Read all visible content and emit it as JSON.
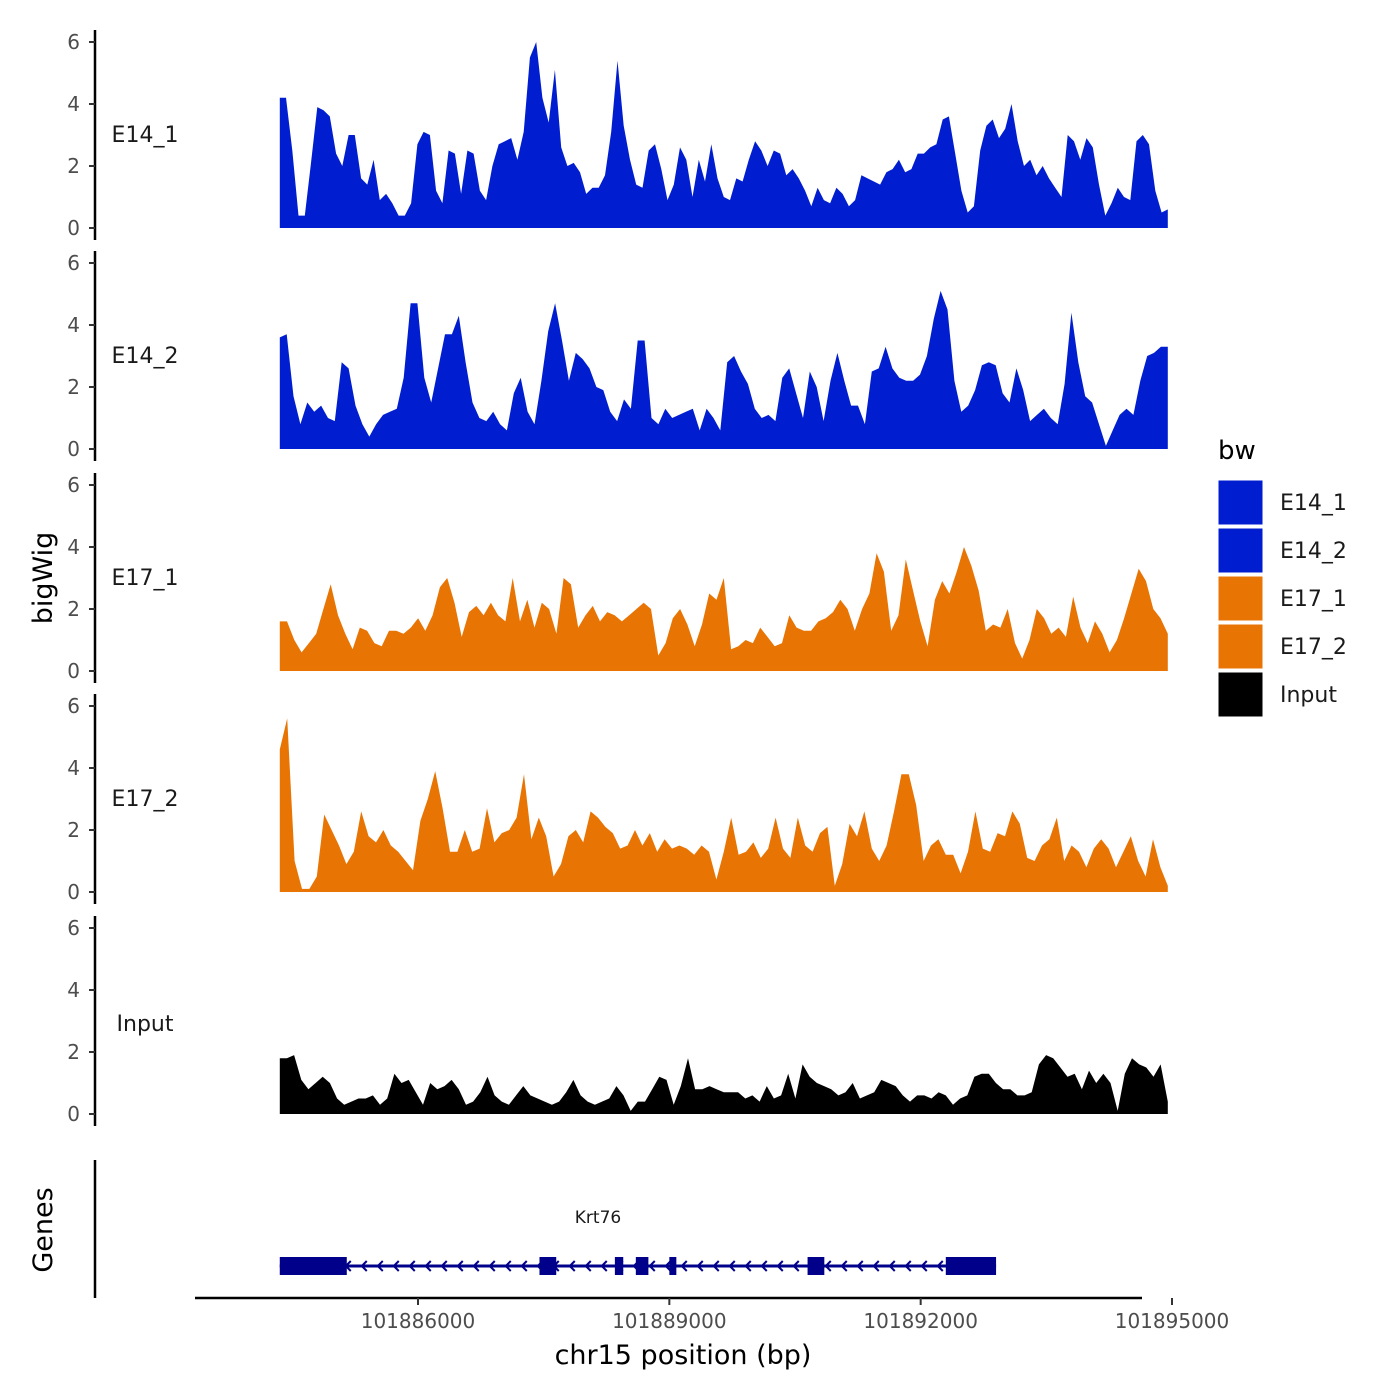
{
  "chart_data": {
    "type": "area",
    "ylabel": "bigWig",
    "xlabel": "chr15 position (bp)",
    "ylim": [
      0,
      6
    ],
    "yticks": [
      0,
      2,
      4,
      6
    ],
    "xlim": [
      101883500,
      101895300
    ],
    "xticks": [
      101886000,
      101889000,
      101892000,
      101895000
    ],
    "xtick_labels": [
      "101886000",
      "101889000",
      "101892000",
      "101895000"
    ],
    "data_start": 101884350,
    "data_end": 101894950,
    "legend": {
      "title": "bw",
      "entries": [
        {
          "label": "E14_1",
          "color": "#001ecf"
        },
        {
          "label": "E14_2",
          "color": "#001ecf"
        },
        {
          "label": "E17_1",
          "color": "#e87404"
        },
        {
          "label": "E17_2",
          "color": "#e87404"
        },
        {
          "label": "Input",
          "color": "#000000"
        }
      ]
    },
    "series": [
      {
        "name": "E14_1",
        "color": "#001ecf",
        "values": [
          4.2,
          4.2,
          2.5,
          0.4,
          0.4,
          2.1,
          3.9,
          3.8,
          3.6,
          2.4,
          2.0,
          3.0,
          3.0,
          1.6,
          1.4,
          2.2,
          0.9,
          1.1,
          0.8,
          0.4,
          0.4,
          0.8,
          2.7,
          3.1,
          3.0,
          1.2,
          0.8,
          2.5,
          2.4,
          1.1,
          2.5,
          2.4,
          1.2,
          0.9,
          2.0,
          2.7,
          2.8,
          2.9,
          2.2,
          3.1,
          5.5,
          6.0,
          4.2,
          3.4,
          5.1,
          2.6,
          2.0,
          2.1,
          1.8,
          1.1,
          1.3,
          1.3,
          1.7,
          3.1,
          5.4,
          3.3,
          2.2,
          1.4,
          1.3,
          2.5,
          2.7,
          1.9,
          0.9,
          1.4,
          2.6,
          2.2,
          1.0,
          2.2,
          1.5,
          2.7,
          1.6,
          1.0,
          0.9,
          1.6,
          1.5,
          2.2,
          2.8,
          2.5,
          2.0,
          2.5,
          2.4,
          1.7,
          1.9,
          1.6,
          1.2,
          0.7,
          1.3,
          0.9,
          0.8,
          1.3,
          1.1,
          0.7,
          0.9,
          1.7,
          1.6,
          1.5,
          1.4,
          1.8,
          1.9,
          2.2,
          1.8,
          1.9,
          2.4,
          2.4,
          2.6,
          2.7,
          3.5,
          3.6,
          2.4,
          1.2,
          0.5,
          0.7,
          2.5,
          3.3,
          3.5,
          2.9,
          3.2,
          4.0,
          2.8,
          2.0,
          2.2,
          1.7,
          2.0,
          1.6,
          1.3,
          1.0,
          3.0,
          2.8,
          2.2,
          2.9,
          2.6,
          1.4,
          0.4,
          0.8,
          1.3,
          1.0,
          0.9,
          2.8,
          3.0,
          2.7,
          1.2,
          0.5,
          0.6
        ]
      },
      {
        "name": "E14_2",
        "color": "#001ecf",
        "values": [
          3.6,
          3.7,
          1.7,
          0.8,
          1.5,
          1.2,
          1.4,
          1.0,
          0.9,
          2.8,
          2.6,
          1.4,
          0.8,
          0.4,
          0.8,
          1.1,
          1.2,
          1.3,
          2.3,
          4.7,
          4.7,
          2.3,
          1.5,
          2.6,
          3.7,
          3.7,
          4.3,
          2.8,
          1.5,
          1.0,
          0.9,
          1.2,
          0.8,
          0.6,
          1.8,
          2.3,
          1.2,
          0.8,
          2.2,
          3.8,
          4.7,
          3.5,
          2.2,
          3.1,
          2.9,
          2.6,
          2.0,
          1.9,
          1.2,
          0.9,
          1.6,
          1.3,
          3.5,
          3.5,
          1.0,
          0.8,
          1.3,
          1.0,
          1.1,
          1.2,
          1.3,
          0.6,
          1.3,
          1.0,
          0.6,
          2.8,
          3.0,
          2.5,
          2.1,
          1.3,
          1.0,
          1.1,
          0.9,
          2.3,
          2.6,
          1.8,
          1.0,
          2.5,
          2.0,
          0.9,
          2.2,
          3.1,
          2.2,
          1.4,
          1.4,
          0.8,
          2.5,
          2.6,
          3.3,
          2.6,
          2.3,
          2.2,
          2.2,
          2.4,
          3.0,
          4.2,
          5.1,
          4.5,
          2.2,
          1.2,
          1.4,
          1.9,
          2.7,
          2.8,
          2.7,
          1.8,
          1.5,
          2.6,
          1.9,
          0.9,
          1.1,
          1.3,
          1.0,
          0.8,
          2.1,
          4.4,
          2.8,
          1.7,
          1.5,
          0.8,
          0.1,
          0.6,
          1.1,
          1.3,
          1.1,
          2.2,
          3.0,
          3.1,
          3.3,
          3.3
        ]
      },
      {
        "name": "E17_1",
        "color": "#e87404",
        "values": [
          1.6,
          1.6,
          1.0,
          0.6,
          0.9,
          1.2,
          2.0,
          2.8,
          1.8,
          1.2,
          0.7,
          1.4,
          1.3,
          0.9,
          0.8,
          1.3,
          1.3,
          1.2,
          1.4,
          1.7,
          1.3,
          1.8,
          2.7,
          3.0,
          2.2,
          1.1,
          1.9,
          2.1,
          1.8,
          2.2,
          1.8,
          1.6,
          3.0,
          1.6,
          2.3,
          1.4,
          2.2,
          2.0,
          1.2,
          3.0,
          2.8,
          1.4,
          1.8,
          2.1,
          1.6,
          1.9,
          1.8,
          1.6,
          1.8,
          2.0,
          2.2,
          2.0,
          0.5,
          0.9,
          1.7,
          2.0,
          1.5,
          0.8,
          1.5,
          2.5,
          2.3,
          3.0,
          0.7,
          0.8,
          1.0,
          0.9,
          1.4,
          1.1,
          0.8,
          0.9,
          1.8,
          1.4,
          1.3,
          1.3,
          1.6,
          1.7,
          1.9,
          2.3,
          2.0,
          1.3,
          2.0,
          2.5,
          3.8,
          3.2,
          1.3,
          1.8,
          3.6,
          2.6,
          1.6,
          0.8,
          2.3,
          2.9,
          2.5,
          3.2,
          4.0,
          3.4,
          2.6,
          1.3,
          1.5,
          1.4,
          2.0,
          0.9,
          0.4,
          1.0,
          2.0,
          1.7,
          1.2,
          1.4,
          1.1,
          2.4,
          1.4,
          0.9,
          1.6,
          1.2,
          0.6,
          1.0,
          1.7,
          2.5,
          3.3,
          2.9,
          2.0,
          1.7,
          1.2
        ]
      },
      {
        "name": "E17_2",
        "color": "#e87404",
        "values": [
          4.6,
          5.6,
          1.0,
          0.1,
          0.1,
          0.5,
          2.5,
          2.0,
          1.5,
          0.9,
          1.3,
          2.6,
          1.8,
          1.6,
          2.0,
          1.5,
          1.3,
          1.0,
          0.7,
          2.3,
          3.0,
          3.9,
          2.7,
          1.3,
          1.3,
          2.0,
          1.3,
          1.4,
          2.7,
          1.6,
          1.9,
          2.0,
          2.4,
          3.8,
          1.7,
          2.4,
          1.8,
          0.5,
          0.9,
          1.8,
          2.0,
          1.6,
          2.6,
          2.4,
          2.1,
          1.9,
          1.4,
          1.5,
          2.0,
          1.5,
          1.9,
          1.3,
          1.7,
          1.4,
          1.5,
          1.4,
          1.2,
          1.5,
          1.3,
          0.4,
          1.3,
          2.4,
          1.2,
          1.3,
          1.6,
          1.1,
          1.4,
          2.4,
          1.4,
          1.1,
          2.4,
          1.5,
          1.3,
          1.9,
          2.1,
          0.2,
          0.9,
          2.2,
          1.8,
          2.6,
          1.4,
          1.0,
          1.5,
          2.6,
          3.8,
          3.8,
          2.8,
          1.0,
          1.5,
          1.7,
          1.2,
          1.2,
          0.6,
          1.3,
          2.6,
          1.4,
          1.3,
          1.9,
          1.8,
          2.6,
          2.2,
          1.1,
          1.0,
          1.5,
          1.7,
          2.4,
          1.0,
          1.5,
          1.3,
          0.8,
          1.4,
          1.7,
          1.4,
          0.8,
          1.3,
          1.8,
          1.0,
          0.5,
          1.7,
          0.8,
          0.2
        ]
      },
      {
        "name": "Input",
        "color": "#000000",
        "values": [
          1.8,
          1.8,
          1.9,
          1.1,
          0.8,
          1.0,
          1.2,
          1.0,
          0.5,
          0.3,
          0.4,
          0.5,
          0.5,
          0.6,
          0.3,
          0.5,
          1.3,
          1.0,
          1.1,
          0.7,
          0.3,
          1.0,
          0.8,
          0.9,
          1.1,
          0.8,
          0.3,
          0.4,
          0.7,
          1.2,
          0.6,
          0.4,
          0.3,
          0.6,
          0.9,
          0.6,
          0.5,
          0.4,
          0.3,
          0.4,
          0.7,
          1.1,
          0.6,
          0.4,
          0.3,
          0.4,
          0.5,
          0.9,
          0.6,
          0.1,
          0.4,
          0.4,
          0.8,
          1.2,
          1.1,
          0.3,
          0.9,
          1.8,
          0.8,
          0.8,
          0.9,
          0.8,
          0.7,
          0.7,
          0.7,
          0.5,
          0.6,
          0.4,
          0.9,
          0.5,
          0.6,
          1.3,
          0.5,
          1.6,
          1.2,
          1.0,
          0.9,
          0.8,
          0.6,
          0.7,
          1.0,
          0.5,
          0.6,
          0.7,
          1.1,
          1.0,
          0.9,
          0.6,
          0.4,
          0.6,
          0.6,
          0.5,
          0.7,
          0.6,
          0.3,
          0.5,
          0.6,
          1.2,
          1.3,
          1.3,
          1.0,
          0.8,
          0.8,
          0.6,
          0.6,
          0.7,
          1.6,
          1.9,
          1.8,
          1.5,
          1.2,
          1.3,
          0.8,
          1.4,
          1.0,
          1.3,
          1.0,
          0.1,
          1.3,
          1.8,
          1.6,
          1.5,
          1.2,
          1.6,
          0.4
        ]
      }
    ],
    "genes_track": {
      "label": "Genes",
      "genes": [
        {
          "name": "Krt76",
          "start": 101884350,
          "end": 101892900,
          "strand": "-",
          "exons": [
            [
              101884350,
              101885150
            ],
            [
              101887450,
              101887650
            ],
            [
              101888350,
              101888450
            ],
            [
              101888600,
              101888750
            ],
            [
              101889000,
              101889080
            ],
            [
              101890650,
              101890850
            ],
            [
              101892300,
              101892900
            ]
          ]
        }
      ]
    }
  }
}
